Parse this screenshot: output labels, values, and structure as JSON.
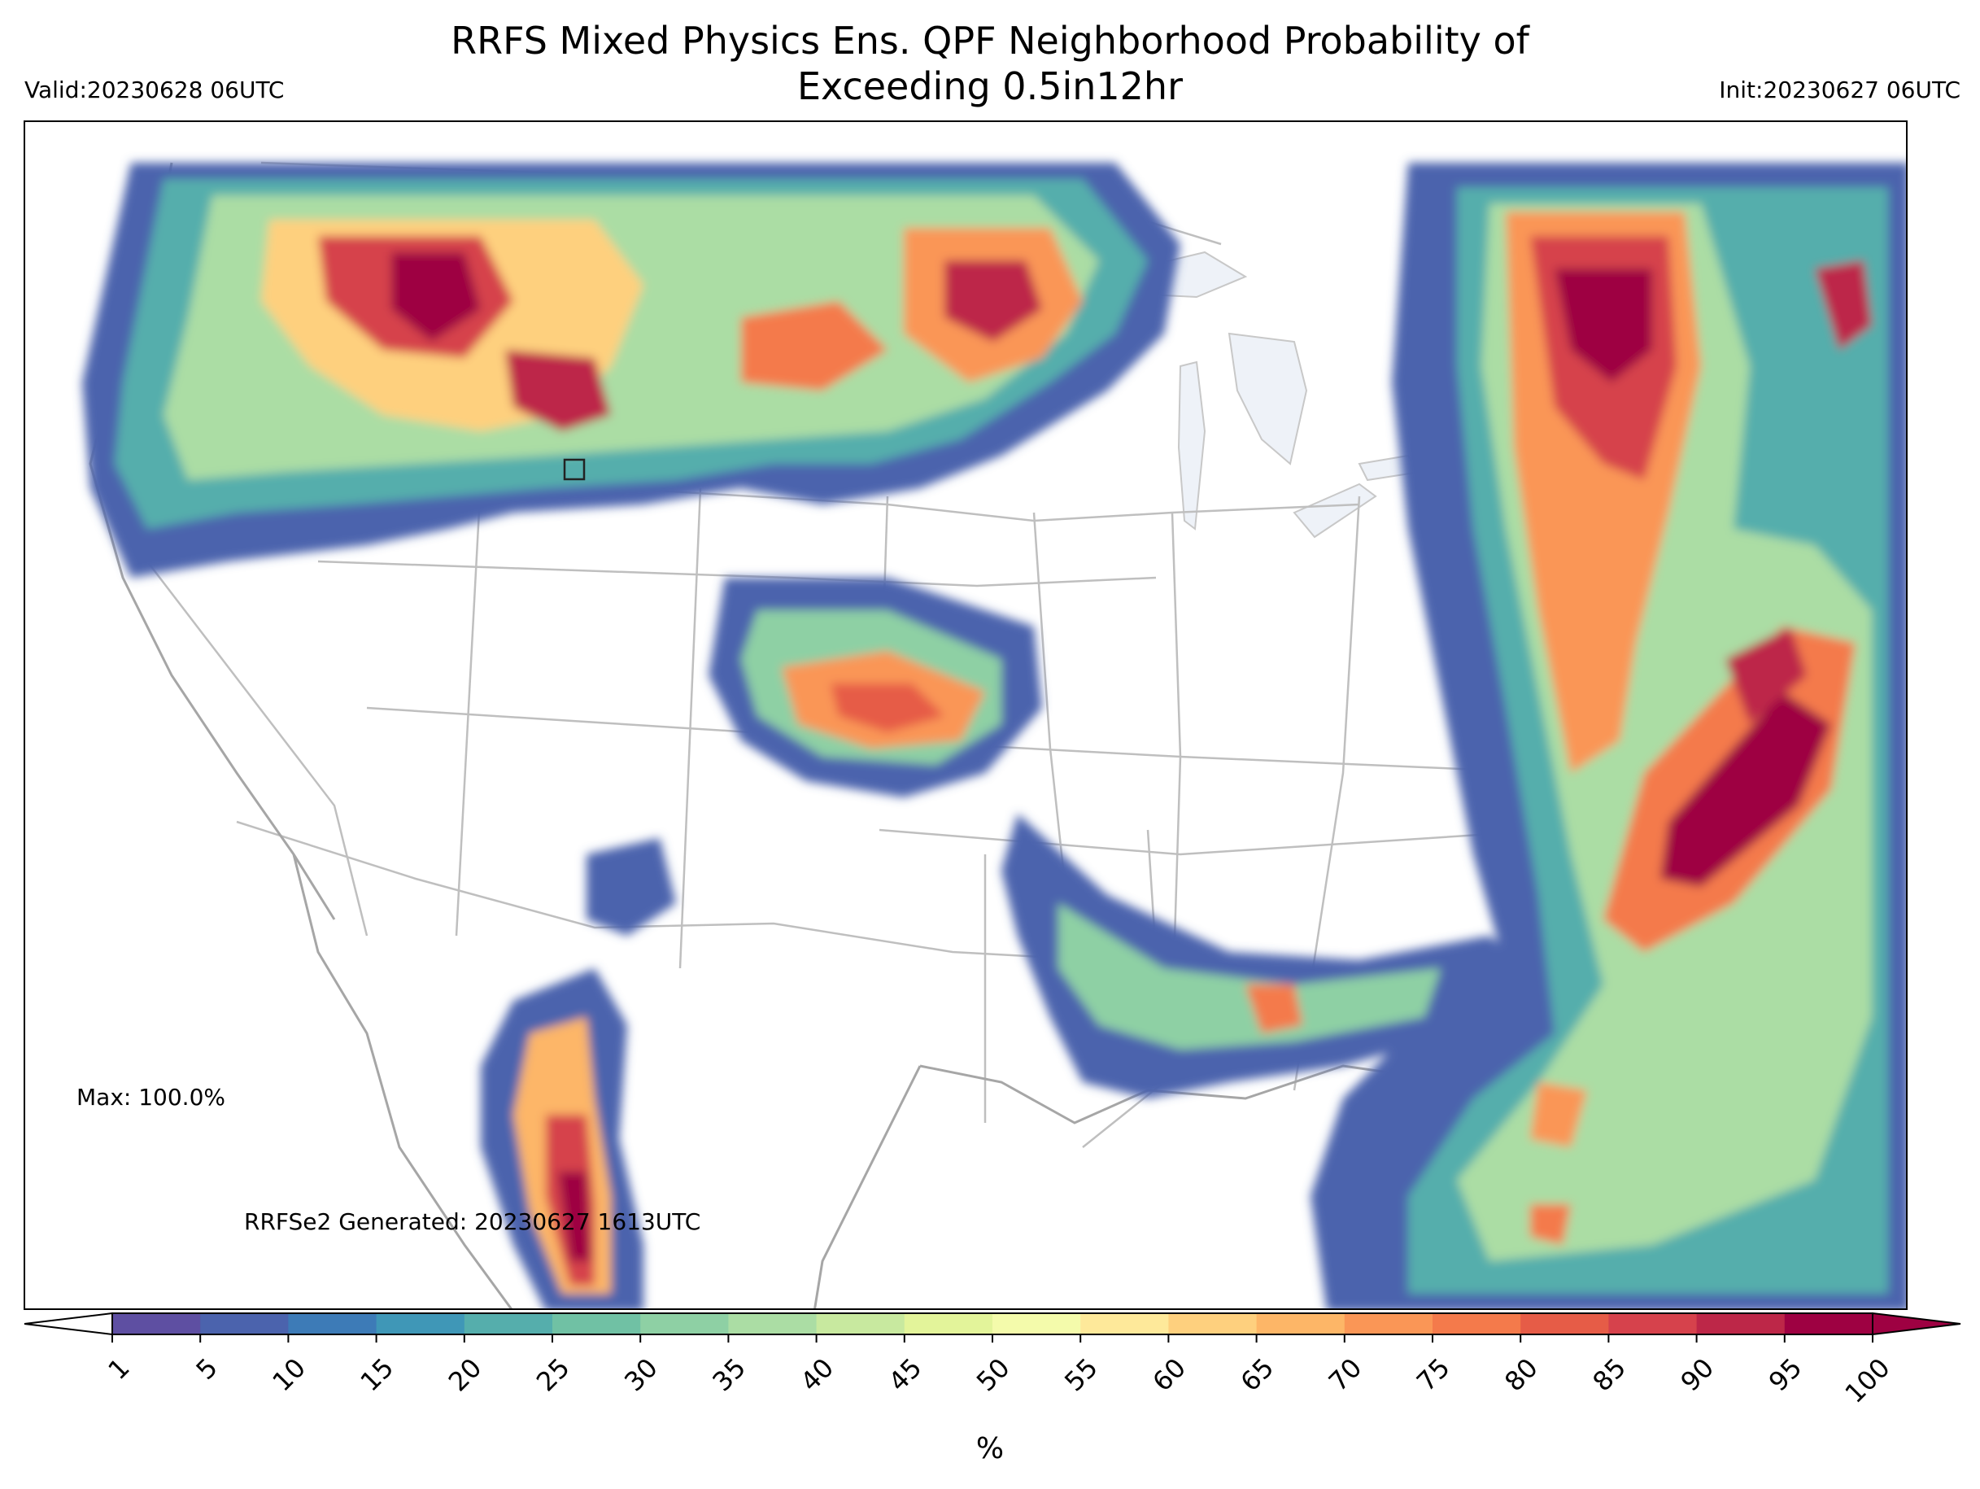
{
  "title_line1": "RRFS Mixed Physics Ens. QPF Neighborhood Probability of",
  "title_line2": "Exceeding 0.5in12hr",
  "valid": "Valid:20230628 06UTC",
  "init": "Init:20230627 06UTC",
  "max_note": "Max: 100.0%",
  "generated_note": "RRFSe2 Generated: 20230627 1613UTC",
  "colorbar": {
    "unit": "%",
    "ticks": [
      "1",
      "5",
      "10",
      "15",
      "20",
      "25",
      "30",
      "35",
      "40",
      "45",
      "50",
      "55",
      "60",
      "65",
      "70",
      "75",
      "80",
      "85",
      "90",
      "95",
      "100"
    ],
    "colors": [
      "#5e4fa2",
      "#4b63ad",
      "#3d7bb7",
      "#3f97b7",
      "#55aeac",
      "#70c1a4",
      "#8ed0a4",
      "#abdda4",
      "#c8e99f",
      "#e3f49a",
      "#f4fbab",
      "#fee99a",
      "#fed07e",
      "#fdb667",
      "#fa9656",
      "#f47a4b",
      "#e65c47",
      "#d6424c",
      "#bd2748",
      "#9e0142"
    ]
  },
  "map_colors": {
    "border": "#bfbfbf",
    "lakes": "#eef2f8"
  }
}
